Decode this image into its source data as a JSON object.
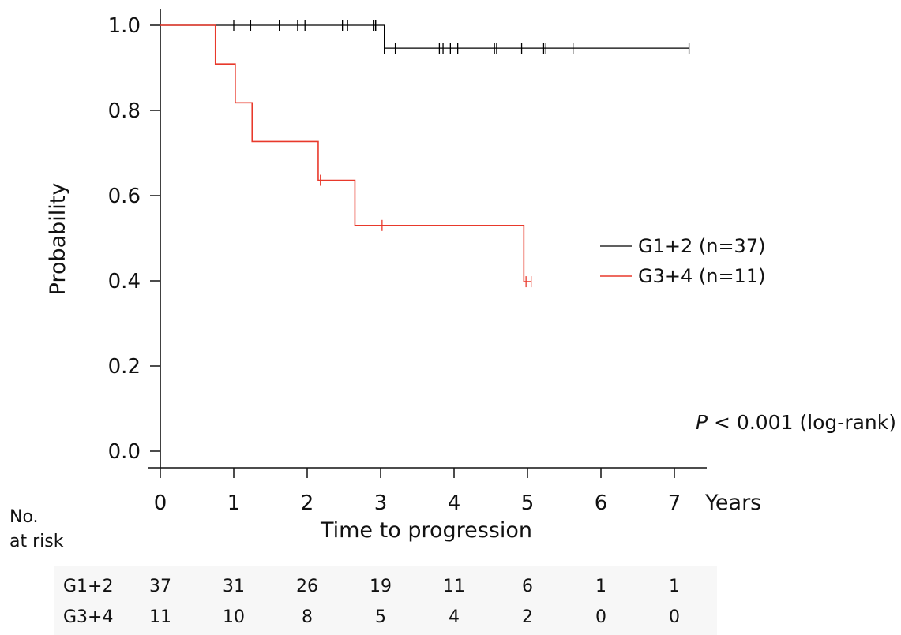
{
  "chart_data": {
    "type": "line",
    "subtype": "kaplan-meier",
    "xlabel": "Time to progression",
    "x_unit": "Years",
    "ylabel": "Probability",
    "xlim": [
      0,
      7.5
    ],
    "ylim": [
      -0.04,
      1.04
    ],
    "xticks": [
      0,
      1,
      2,
      3,
      4,
      5,
      6,
      7
    ],
    "yticks": [
      "0.0",
      "0.2",
      "0.4",
      "0.6",
      "0.8",
      "1.0"
    ],
    "grid": false,
    "legend_placement": "right",
    "series": [
      {
        "name": "G1+2 (n=37)",
        "color": "#000000",
        "steps": [
          [
            0,
            1.0
          ],
          [
            3.05,
            0.946
          ],
          [
            7.2,
            0.946
          ]
        ],
        "censored": [
          [
            1.0,
            1.0
          ],
          [
            1.23,
            1.0
          ],
          [
            1.62,
            1.0
          ],
          [
            1.87,
            1.0
          ],
          [
            1.97,
            1.0
          ],
          [
            2.48,
            1.0
          ],
          [
            2.55,
            1.0
          ],
          [
            2.9,
            1.0
          ],
          [
            2.93,
            1.0
          ],
          [
            2.95,
            1.0
          ],
          [
            3.05,
            0.946
          ],
          [
            3.2,
            0.946
          ],
          [
            3.8,
            0.946
          ],
          [
            3.85,
            0.946
          ],
          [
            3.95,
            0.946
          ],
          [
            4.05,
            0.946
          ],
          [
            4.55,
            0.946
          ],
          [
            4.58,
            0.946
          ],
          [
            4.92,
            0.946
          ],
          [
            5.22,
            0.946
          ],
          [
            5.25,
            0.946
          ],
          [
            5.62,
            0.946
          ],
          [
            7.2,
            0.946
          ]
        ]
      },
      {
        "name": "G3+4 (n=11)",
        "color": "#e8392b",
        "steps": [
          [
            0,
            1.0
          ],
          [
            0.75,
            0.909
          ],
          [
            1.02,
            0.818
          ],
          [
            1.25,
            0.727
          ],
          [
            2.15,
            0.636
          ],
          [
            2.65,
            0.53
          ],
          [
            4.95,
            0.398
          ],
          [
            5.05,
            0.398
          ]
        ],
        "censored": [
          [
            2.18,
            0.636
          ],
          [
            3.02,
            0.53
          ],
          [
            4.98,
            0.398
          ],
          [
            5.05,
            0.398
          ]
        ]
      }
    ],
    "annotation": "(log-rank)",
    "annotation_p": "P",
    "annotation_value": "< 0.001",
    "risk_table": {
      "header_line1": "No.",
      "header_line2": "at risk",
      "times": [
        0,
        1,
        2,
        3,
        4,
        5,
        6,
        7
      ],
      "rows": [
        {
          "label": "G1+2",
          "counts": [
            "37",
            "31",
            "26",
            "19",
            "11",
            "6",
            "1",
            "1"
          ]
        },
        {
          "label": "G3+4",
          "counts": [
            "11",
            "10",
            "8",
            "5",
            "4",
            "2",
            "0",
            "0"
          ]
        }
      ]
    }
  }
}
